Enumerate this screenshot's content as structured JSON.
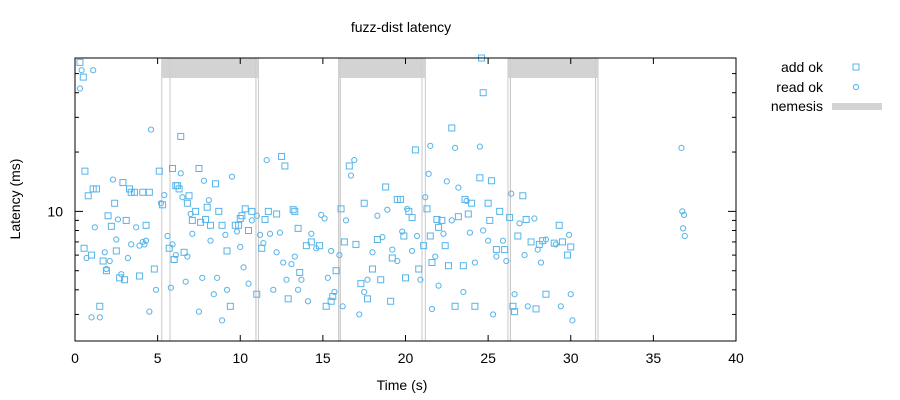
{
  "chart_data": {
    "type": "scatter",
    "title": "fuzz-dist latency",
    "xlabel": "Time (s)",
    "ylabel": "Latency (ms)",
    "xlim": [
      0,
      40
    ],
    "ylim_log": [
      2.2,
      60
    ],
    "y_scale": "log",
    "x_ticks": [
      0,
      5,
      10,
      15,
      20,
      25,
      30,
      35,
      40
    ],
    "y_ticks": [
      10
    ],
    "grid": false,
    "legend_position": "top-right outside",
    "colors": {
      "series": "#56b4e9",
      "nemesis_fill": "#d3d3d3",
      "nemesis_edge": "#c8c8c8"
    },
    "legend": [
      {
        "label": "add ok",
        "marker": "square"
      },
      {
        "label": "read ok",
        "marker": "circle"
      },
      {
        "label": "nemesis",
        "marker": "band"
      }
    ],
    "nemesis_intervals": [
      [
        5.25,
        5.75
      ],
      [
        5.75,
        10.95
      ],
      [
        10.95,
        11.1
      ],
      [
        15.95,
        16.05
      ],
      [
        16.05,
        21.0
      ],
      [
        21.0,
        21.2
      ],
      [
        26.2,
        26.35
      ],
      [
        26.35,
        31.5
      ],
      [
        31.5,
        31.65
      ]
    ],
    "series": [
      {
        "name": "add ok",
        "marker": "square",
        "points": [
          [
            0.3,
            57
          ],
          [
            0.5,
            48
          ],
          [
            0.55,
            6.5
          ],
          [
            0.6,
            16
          ],
          [
            0.8,
            12
          ],
          [
            1.0,
            6
          ],
          [
            1.1,
            13
          ],
          [
            1.3,
            13
          ],
          [
            1.5,
            3.3
          ],
          [
            1.7,
            5.6
          ],
          [
            1.9,
            5
          ],
          [
            2.0,
            9.5
          ],
          [
            2.2,
            8.4
          ],
          [
            2.4,
            11
          ],
          [
            2.5,
            6.3
          ],
          [
            2.7,
            4.6
          ],
          [
            2.9,
            14
          ],
          [
            3.0,
            4.5
          ],
          [
            3.1,
            9
          ],
          [
            3.3,
            13
          ],
          [
            3.4,
            12.5
          ],
          [
            3.6,
            12.5
          ],
          [
            3.9,
            4.7
          ],
          [
            4.1,
            12.5
          ],
          [
            4.3,
            8.5
          ],
          [
            4.5,
            12.5
          ],
          [
            4.8,
            5.1
          ],
          [
            5.1,
            16
          ],
          [
            5.3,
            10.8
          ],
          [
            5.7,
            6.5
          ],
          [
            5.9,
            16.5
          ],
          [
            6.0,
            5.7
          ],
          [
            6.1,
            13.5
          ],
          [
            6.2,
            13.5
          ],
          [
            6.3,
            13
          ],
          [
            6.4,
            24
          ],
          [
            6.6,
            6.2
          ],
          [
            6.8,
            11
          ],
          [
            6.9,
            12
          ],
          [
            7.1,
            9
          ],
          [
            7.3,
            10
          ],
          [
            7.5,
            16.5
          ],
          [
            7.6,
            8.8
          ],
          [
            7.9,
            9.1
          ],
          [
            8.0,
            10.5
          ],
          [
            8.2,
            8.5
          ],
          [
            8.5,
            13.8
          ],
          [
            8.7,
            10
          ],
          [
            8.9,
            8.5
          ],
          [
            9.2,
            6.3
          ],
          [
            9.4,
            3.3
          ],
          [
            9.7,
            8.5
          ],
          [
            9.9,
            8.5
          ],
          [
            10.0,
            9.2
          ],
          [
            10.1,
            9.5
          ],
          [
            10.3,
            10.3
          ],
          [
            10.5,
            8
          ],
          [
            10.7,
            10
          ],
          [
            11.0,
            3.8
          ],
          [
            11.3,
            6.5
          ],
          [
            11.5,
            9.1
          ],
          [
            11.7,
            10
          ],
          [
            12.2,
            9.7
          ],
          [
            12.5,
            19
          ],
          [
            12.7,
            17
          ],
          [
            12.9,
            3.6
          ],
          [
            13.2,
            10.2
          ],
          [
            13.3,
            10
          ],
          [
            13.5,
            8.2
          ],
          [
            13.6,
            4.9
          ],
          [
            14.0,
            6.7
          ],
          [
            14.3,
            7
          ],
          [
            14.8,
            6.7
          ],
          [
            15.2,
            3.3
          ],
          [
            15.5,
            3.5
          ],
          [
            15.6,
            3.7
          ],
          [
            15.8,
            5
          ],
          [
            16.1,
            10.3
          ],
          [
            16.3,
            7
          ],
          [
            16.6,
            17
          ],
          [
            17.0,
            6.8
          ],
          [
            17.3,
            4.3
          ],
          [
            17.5,
            11
          ],
          [
            17.7,
            3.6
          ],
          [
            18.0,
            5.1
          ],
          [
            18.3,
            7.2
          ],
          [
            18.5,
            4.5
          ],
          [
            18.8,
            13.3
          ],
          [
            19.1,
            3.5
          ],
          [
            19.2,
            5.8
          ],
          [
            19.5,
            11.5
          ],
          [
            19.7,
            11.5
          ],
          [
            19.9,
            7.5
          ],
          [
            20.0,
            4.6
          ],
          [
            20.2,
            10
          ],
          [
            20.4,
            9.3
          ],
          [
            20.6,
            20.5
          ],
          [
            20.8,
            5.1
          ],
          [
            21.1,
            6.7
          ],
          [
            21.3,
            10.3
          ],
          [
            21.5,
            7.5
          ],
          [
            21.6,
            5.5
          ],
          [
            21.9,
            9.1
          ],
          [
            22.0,
            8.3
          ],
          [
            22.2,
            9
          ],
          [
            22.4,
            6.7
          ],
          [
            22.6,
            5.3
          ],
          [
            22.8,
            26.5
          ],
          [
            23.0,
            3.3
          ],
          [
            23.2,
            9.4
          ],
          [
            23.5,
            5.3
          ],
          [
            23.6,
            11.5
          ],
          [
            23.8,
            9.7
          ],
          [
            24.0,
            11
          ],
          [
            24.2,
            3.3
          ],
          [
            24.5,
            14.8
          ],
          [
            24.6,
            60
          ],
          [
            24.7,
            40
          ],
          [
            25.0,
            11
          ],
          [
            25.1,
            9
          ],
          [
            25.2,
            14.3
          ],
          [
            25.5,
            6.4
          ],
          [
            25.7,
            10
          ],
          [
            26.0,
            6.4
          ],
          [
            26.3,
            9.3
          ],
          [
            26.5,
            3.3
          ],
          [
            26.6,
            3.1
          ],
          [
            26.8,
            7.5
          ],
          [
            27.1,
            12
          ],
          [
            27.3,
            9.1
          ],
          [
            27.6,
            7
          ],
          [
            27.9,
            3.2
          ],
          [
            28.1,
            6.8
          ],
          [
            28.3,
            7.1
          ],
          [
            28.5,
            3.8
          ],
          [
            29.0,
            6.9
          ],
          [
            29.3,
            8.5
          ],
          [
            29.5,
            7
          ],
          [
            29.8,
            6
          ],
          [
            30.0,
            6.6
          ]
        ]
      },
      {
        "name": "read ok",
        "marker": "circle",
        "points": [
          [
            0.3,
            42
          ],
          [
            0.4,
            52
          ],
          [
            0.7,
            5.8
          ],
          [
            1.0,
            2.9
          ],
          [
            1.1,
            52
          ],
          [
            1.2,
            8.3
          ],
          [
            1.5,
            2.9
          ],
          [
            1.8,
            6.2
          ],
          [
            1.9,
            5.1
          ],
          [
            2.1,
            5.6
          ],
          [
            2.3,
            14.5
          ],
          [
            2.5,
            7.2
          ],
          [
            2.6,
            9.1
          ],
          [
            2.8,
            4.8
          ],
          [
            3.2,
            5.8
          ],
          [
            3.4,
            6.8
          ],
          [
            3.7,
            8.3
          ],
          [
            3.9,
            6.7
          ],
          [
            4.1,
            7.0
          ],
          [
            4.2,
            6.8
          ],
          [
            4.3,
            7.1
          ],
          [
            4.5,
            3.1
          ],
          [
            4.6,
            26
          ],
          [
            4.9,
            4.0
          ],
          [
            5.2,
            11
          ],
          [
            5.4,
            12.1
          ],
          [
            5.6,
            7.5
          ],
          [
            5.8,
            4.1
          ],
          [
            5.9,
            6.8
          ],
          [
            6.1,
            6.0
          ],
          [
            6.4,
            15.6
          ],
          [
            6.5,
            11.8
          ],
          [
            6.7,
            4.4
          ],
          [
            6.8,
            5.9
          ],
          [
            7.0,
            9.7
          ],
          [
            7.1,
            7.7
          ],
          [
            7.5,
            3.1
          ],
          [
            7.7,
            4.6
          ],
          [
            7.8,
            14.3
          ],
          [
            8.1,
            11.4
          ],
          [
            8.2,
            7.1
          ],
          [
            8.4,
            3.8
          ],
          [
            8.6,
            4.6
          ],
          [
            8.9,
            2.8
          ],
          [
            9.1,
            7.6
          ],
          [
            9.2,
            4.0
          ],
          [
            9.5,
            15.0
          ],
          [
            9.8,
            7.9
          ],
          [
            10.0,
            6.6
          ],
          [
            10.2,
            5.2
          ],
          [
            10.5,
            4.3
          ],
          [
            10.7,
            9.0
          ],
          [
            11.0,
            9.5
          ],
          [
            11.2,
            7.6
          ],
          [
            11.4,
            6.9
          ],
          [
            11.6,
            18.2
          ],
          [
            11.8,
            7.7
          ],
          [
            12.0,
            4.0
          ],
          [
            12.2,
            6.2
          ],
          [
            12.4,
            7.8
          ],
          [
            12.6,
            5.5
          ],
          [
            12.8,
            4.5
          ],
          [
            13.1,
            5.4
          ],
          [
            13.3,
            5.9
          ],
          [
            13.5,
            4.0
          ],
          [
            13.7,
            4.5
          ],
          [
            14.1,
            3.5
          ],
          [
            14.3,
            7.7
          ],
          [
            14.6,
            6.5
          ],
          [
            14.9,
            9.6
          ],
          [
            15.1,
            9.2
          ],
          [
            15.3,
            4.6
          ],
          [
            15.5,
            6.3
          ],
          [
            15.7,
            3.9
          ],
          [
            16.0,
            6.0
          ],
          [
            16.2,
            3.3
          ],
          [
            16.4,
            9.0
          ],
          [
            16.7,
            15.2
          ],
          [
            16.9,
            18.2
          ],
          [
            17.2,
            3.0
          ],
          [
            17.5,
            3.9
          ],
          [
            17.7,
            4.5
          ],
          [
            18.0,
            6.2
          ],
          [
            18.3,
            9.5
          ],
          [
            18.6,
            7.4
          ],
          [
            18.9,
            10.2
          ],
          [
            19.2,
            6.4
          ],
          [
            19.5,
            5.6
          ],
          [
            19.8,
            7.9
          ],
          [
            20.1,
            10.3
          ],
          [
            20.4,
            6.3
          ],
          [
            20.7,
            7.5
          ],
          [
            20.9,
            4.5
          ],
          [
            21.2,
            11.8
          ],
          [
            21.4,
            15.5
          ],
          [
            21.5,
            21.5
          ],
          [
            21.6,
            3.2
          ],
          [
            21.8,
            5.9
          ],
          [
            22.0,
            4.2
          ],
          [
            22.3,
            7.7
          ],
          [
            22.5,
            14.2
          ],
          [
            22.8,
            9.0
          ],
          [
            23.0,
            21.0
          ],
          [
            23.2,
            13.2
          ],
          [
            23.5,
            3.9
          ],
          [
            23.7,
            11.3
          ],
          [
            23.9,
            7.8
          ],
          [
            24.2,
            5.5
          ],
          [
            24.5,
            21.3
          ],
          [
            24.7,
            8.0
          ],
          [
            25.0,
            7.1
          ],
          [
            25.3,
            3.0
          ],
          [
            25.5,
            5.9
          ],
          [
            25.9,
            7.1
          ],
          [
            26.1,
            5.6
          ],
          [
            26.4,
            12.3
          ],
          [
            26.6,
            3.8
          ],
          [
            26.9,
            8.7
          ],
          [
            27.2,
            6.0
          ],
          [
            27.4,
            3.3
          ],
          [
            27.8,
            9.2
          ],
          [
            28.0,
            6.4
          ],
          [
            28.2,
            5.5
          ],
          [
            28.5,
            7.2
          ],
          [
            29.1,
            6.8
          ],
          [
            29.4,
            3.3
          ],
          [
            29.9,
            7.6
          ],
          [
            30.0,
            3.8
          ],
          [
            30.1,
            2.8
          ],
          [
            36.7,
            21.0
          ],
          [
            36.75,
            10.0
          ],
          [
            36.8,
            8.2
          ],
          [
            36.85,
            9.6
          ],
          [
            36.9,
            7.5
          ]
        ]
      }
    ]
  }
}
